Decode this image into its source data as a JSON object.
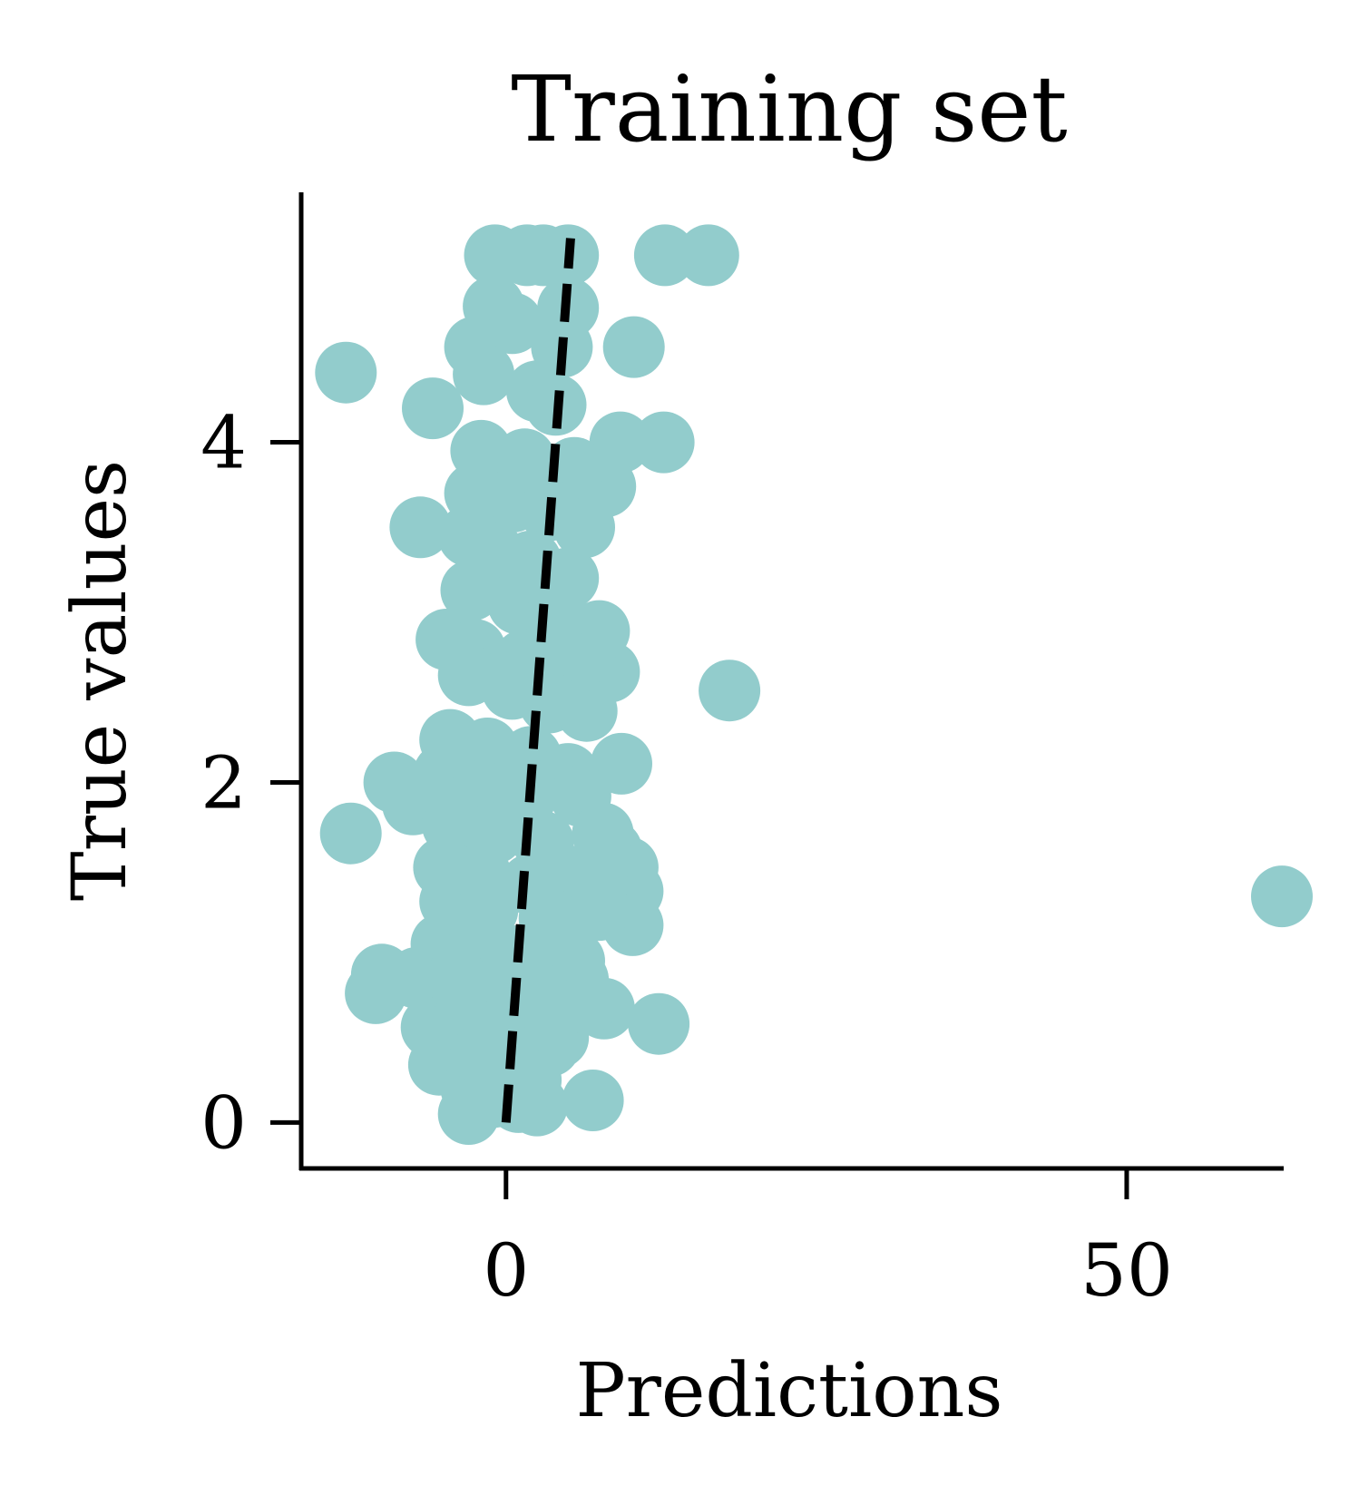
{
  "chart_data": {
    "type": "scatter",
    "title": "Training set",
    "xlabel": "Predictions",
    "ylabel": "True values",
    "xlim": [
      -16.5,
      62.5
    ],
    "ylim": [
      -0.27,
      5.47
    ],
    "xticks": [
      0,
      50
    ],
    "yticks": [
      0,
      2,
      4
    ],
    "xtick_labels": [
      "0",
      "50"
    ],
    "ytick_labels": [
      "0",
      "2",
      "4"
    ],
    "grid": false,
    "marker_color": "#92cccc",
    "reference_line": {
      "style": "dashed",
      "color": "#000000",
      "points": [
        [
          0,
          0
        ],
        [
          5.2,
          5.2
        ]
      ]
    },
    "series": [
      {
        "points": [
          [
            -12.9,
            4.41
          ],
          [
            -5.9,
            4.2
          ],
          [
            -6.9,
            3.5
          ],
          [
            -12.5,
            1.7
          ],
          [
            -9.0,
            2.0
          ],
          [
            -7.5,
            1.87
          ],
          [
            -10.0,
            0.87
          ],
          [
            -10.5,
            0.76
          ],
          [
            -7.2,
            0.85
          ],
          [
            -5.4,
            0.34
          ],
          [
            -6.0,
            0.56
          ],
          [
            12.8,
            5.1
          ],
          [
            16.3,
            5.1
          ],
          [
            10.3,
            4.56
          ],
          [
            12.7,
            4.0
          ],
          [
            9.2,
            4.0
          ],
          [
            8.0,
            3.74
          ],
          [
            6.3,
            3.5
          ],
          [
            4.5,
            4.56
          ],
          [
            5.0,
            4.79
          ],
          [
            18.0,
            2.54
          ],
          [
            62.5,
            1.33
          ],
          [
            9.3,
            2.11
          ],
          [
            8.3,
            2.65
          ],
          [
            7.5,
            2.89
          ],
          [
            9.8,
            1.5
          ],
          [
            10.2,
            1.36
          ],
          [
            10.2,
            1.16
          ],
          [
            8.5,
            1.6
          ],
          [
            7.9,
            0.67
          ],
          [
            12.3,
            0.58
          ],
          [
            7.0,
            0.13
          ],
          [
            2.5,
            0.1
          ],
          [
            -2.8,
            0.2
          ],
          [
            0.8,
            0.3
          ],
          [
            4.2,
            0.5
          ],
          [
            5.8,
            0.84
          ],
          [
            -0.9,
            5.1
          ],
          [
            1.7,
            5.1
          ],
          [
            3.0,
            5.1
          ],
          [
            5.0,
            5.1
          ],
          [
            -1.0,
            4.8
          ],
          [
            0.5,
            4.7
          ],
          [
            -2.5,
            4.56
          ],
          [
            -1.8,
            4.4
          ],
          [
            2.5,
            4.3
          ],
          [
            4.0,
            4.22
          ],
          [
            -2.0,
            3.95
          ],
          [
            1.5,
            3.9
          ],
          [
            5.5,
            3.85
          ],
          [
            -2.5,
            3.7
          ],
          [
            0.5,
            3.65
          ],
          [
            3.5,
            3.6
          ],
          [
            -3.0,
            3.45
          ],
          [
            -1.0,
            3.35
          ],
          [
            2.0,
            3.3
          ],
          [
            5.0,
            3.2
          ],
          [
            -2.8,
            3.13
          ],
          [
            1.0,
            3.05
          ],
          [
            4.0,
            2.97
          ],
          [
            -4.8,
            2.84
          ],
          [
            -2.5,
            2.78
          ],
          [
            1.5,
            2.72
          ],
          [
            5.5,
            2.7
          ],
          [
            -3.0,
            2.63
          ],
          [
            0.5,
            2.55
          ],
          [
            3.5,
            2.47
          ],
          [
            6.5,
            2.42
          ],
          [
            -4.5,
            2.25
          ],
          [
            -1.5,
            2.2
          ],
          [
            2.0,
            2.15
          ],
          [
            5.0,
            2.05
          ],
          [
            -5.0,
            2.05
          ],
          [
            -2.0,
            1.95
          ],
          [
            1.5,
            1.9
          ],
          [
            6.0,
            1.92
          ],
          [
            -4.3,
            1.75
          ],
          [
            -1.0,
            1.7
          ],
          [
            3.0,
            1.65
          ],
          [
            7.8,
            1.7
          ],
          [
            -5.0,
            1.5
          ],
          [
            -2.0,
            1.45
          ],
          [
            2.0,
            1.4
          ],
          [
            6.0,
            1.45
          ],
          [
            -4.5,
            1.3
          ],
          [
            -1.5,
            1.25
          ],
          [
            3.5,
            1.2
          ],
          [
            7.5,
            1.25
          ],
          [
            -5.2,
            1.05
          ],
          [
            -2.5,
            1.0
          ],
          [
            1.0,
            0.98
          ],
          [
            5.5,
            0.95
          ],
          [
            -4.0,
            0.85
          ],
          [
            -0.5,
            0.8
          ],
          [
            3.0,
            0.75
          ],
          [
            6.5,
            0.7
          ],
          [
            -3.5,
            0.6
          ],
          [
            0.0,
            0.55
          ],
          [
            3.5,
            0.45
          ],
          [
            -2.0,
            0.4
          ],
          [
            1.5,
            0.3
          ],
          [
            -1.0,
            0.15
          ],
          [
            1.0,
            0.12
          ],
          [
            -3.0,
            0.05
          ],
          [
            2.0,
            0.25
          ]
        ]
      }
    ]
  }
}
